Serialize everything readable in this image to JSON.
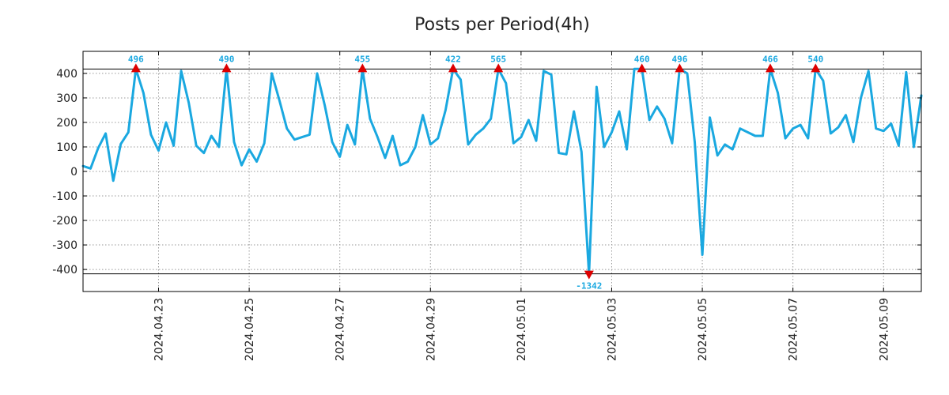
{
  "chart_data": {
    "type": "line",
    "title": "Posts per Period(4h)",
    "xlabel": "",
    "ylabel": "",
    "ylim": [
      -490,
      490
    ],
    "clip_lines": [
      418,
      -418
    ],
    "grid": true,
    "y_ticks": [
      400,
      300,
      200,
      100,
      0,
      -100,
      -200,
      -300,
      -400
    ],
    "y_tick_labels": [
      "400",
      "300",
      "200",
      "100",
      "0",
      "-100",
      "-200",
      "-300",
      "-400"
    ],
    "x_range": [
      0,
      111
    ],
    "x_ticks": [
      {
        "index": 10,
        "label": "2024.04.23"
      },
      {
        "index": 22,
        "label": "2024.04.25"
      },
      {
        "index": 34,
        "label": "2024.04.27"
      },
      {
        "index": 46,
        "label": "2024.04.29"
      },
      {
        "index": 58,
        "label": "2024.05.01"
      },
      {
        "index": 70,
        "label": "2024.05.03"
      },
      {
        "index": 82,
        "label": "2024.05.05"
      },
      {
        "index": 94,
        "label": "2024.05.07"
      },
      {
        "index": 106,
        "label": "2024.05.09"
      }
    ],
    "series": [
      {
        "name": "Posts",
        "color": "#1aa8e0",
        "values": [
          22,
          12,
          95,
          155,
          -38,
          112,
          160,
          418,
          320,
          150,
          85,
          200,
          105,
          410,
          280,
          105,
          75,
          145,
          100,
          418,
          120,
          25,
          90,
          40,
          115,
          400,
          290,
          175,
          130,
          140,
          150,
          400,
          270,
          120,
          60,
          190,
          110,
          418,
          215,
          140,
          55,
          145,
          25,
          40,
          100,
          230,
          110,
          135,
          250,
          418,
          375,
          110,
          150,
          175,
          215,
          418,
          360,
          115,
          140,
          210,
          125,
          410,
          395,
          75,
          70,
          245,
          80,
          -418,
          345,
          100,
          160,
          245,
          90,
          418,
          418,
          210,
          265,
          215,
          115,
          418,
          400,
          120,
          -340,
          220,
          65,
          110,
          90,
          175,
          160,
          145,
          145,
          418,
          320,
          135,
          175,
          190,
          135,
          418,
          370,
          155,
          180,
          230,
          120,
          300,
          410,
          175,
          165,
          195,
          105,
          405,
          100,
          310
        ]
      }
    ],
    "annotations": [
      {
        "index": 7,
        "label": "496",
        "direction": "up"
      },
      {
        "index": 19,
        "label": "490",
        "direction": "up"
      },
      {
        "index": 37,
        "label": "455",
        "direction": "up"
      },
      {
        "index": 49,
        "label": "422",
        "direction": "up"
      },
      {
        "index": 55,
        "label": "565",
        "direction": "up"
      },
      {
        "index": 67,
        "label": "-1342",
        "direction": "down"
      },
      {
        "index": 74,
        "label": "460",
        "direction": "up"
      },
      {
        "index": 79,
        "label": "496",
        "direction": "up"
      },
      {
        "index": 91,
        "label": "466",
        "direction": "up"
      },
      {
        "index": 97,
        "label": "540",
        "direction": "up"
      }
    ],
    "marker_color": "#dd0000",
    "label_color": "#1aa8e0"
  }
}
